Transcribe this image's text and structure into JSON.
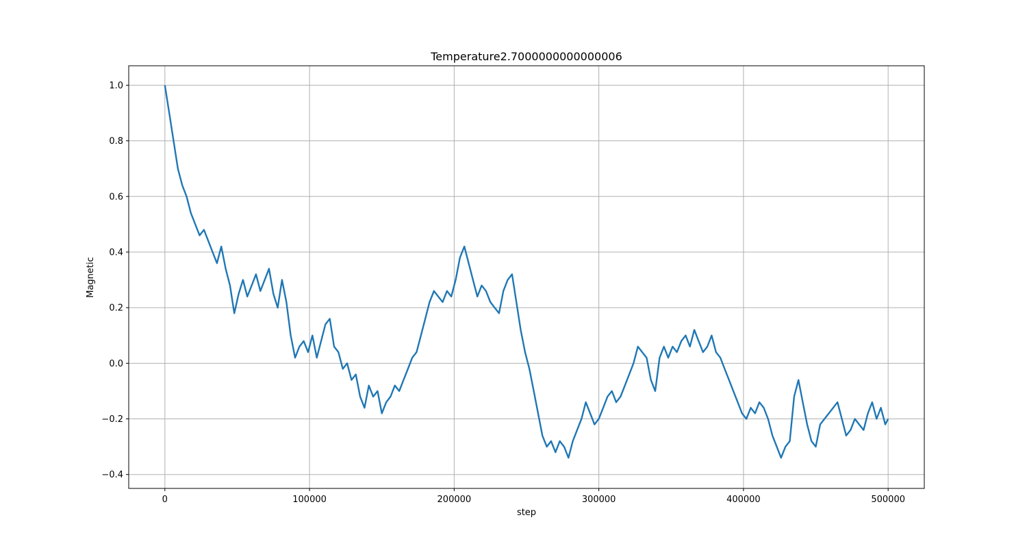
{
  "chart_data": {
    "type": "line",
    "title": "Temperature2.7000000000000006",
    "xlabel": "step",
    "ylabel": "Magnetic",
    "xlim": [
      -25000,
      525000
    ],
    "ylim": [
      -0.45,
      1.07
    ],
    "xticks": [
      0,
      100000,
      200000,
      300000,
      400000,
      500000
    ],
    "xtick_labels": [
      "0",
      "100000",
      "200000",
      "300000",
      "400000",
      "500000"
    ],
    "yticks": [
      -0.4,
      -0.2,
      0.0,
      0.2,
      0.4,
      0.6,
      0.8,
      1.0
    ],
    "ytick_labels": [
      "−0.4",
      "−0.2",
      "0.0",
      "0.2",
      "0.4",
      "0.6",
      "0.8",
      "1.0"
    ],
    "grid": true,
    "series": [
      {
        "color": "#1f77b4",
        "x": [
          0,
          3000,
          6000,
          9000,
          12000,
          15000,
          18000,
          21000,
          24000,
          27000,
          30000,
          33000,
          36000,
          39000,
          42000,
          45000,
          48000,
          51000,
          54000,
          57000,
          60000,
          63000,
          66000,
          69000,
          72000,
          75000,
          78000,
          81000,
          84000,
          87000,
          90000,
          93000,
          96000,
          99000,
          102000,
          105000,
          108000,
          111000,
          114000,
          117000,
          120000,
          123000,
          126000,
          129000,
          132000,
          135000,
          138000,
          141000,
          144000,
          147000,
          150000,
          153000,
          156000,
          159000,
          162000,
          165000,
          168000,
          171000,
          174000,
          177000,
          180000,
          183000,
          186000,
          189000,
          192000,
          195000,
          198000,
          201000,
          204000,
          207000,
          210000,
          213000,
          216000,
          219000,
          222000,
          225000,
          228000,
          231000,
          234000,
          237000,
          240000,
          243000,
          246000,
          249000,
          252000,
          255000,
          258000,
          261000,
          264000,
          267000,
          270000,
          273000,
          276000,
          279000,
          282000,
          285000,
          288000,
          291000,
          294000,
          297000,
          300000,
          303000,
          306000,
          309000,
          312000,
          315000,
          318000,
          321000,
          324000,
          327000,
          330000,
          333000,
          336000,
          339000,
          342000,
          345000,
          348000,
          351000,
          354000,
          357000,
          360000,
          363000,
          366000,
          369000,
          372000,
          375000,
          378000,
          381000,
          384000,
          387000,
          390000,
          393000,
          396000,
          399000,
          402000,
          405000,
          408000,
          411000,
          414000,
          417000,
          420000,
          423000,
          426000,
          429000,
          432000,
          435000,
          438000,
          441000,
          444000,
          447000,
          450000,
          453000,
          456000,
          459000,
          462000,
          465000,
          468000,
          471000,
          474000,
          477000,
          480000,
          483000,
          486000,
          489000,
          492000,
          495000,
          498000,
          500000
        ],
        "y": [
          1.0,
          0.9,
          0.8,
          0.7,
          0.64,
          0.6,
          0.54,
          0.5,
          0.46,
          0.48,
          0.44,
          0.4,
          0.36,
          0.42,
          0.34,
          0.28,
          0.18,
          0.25,
          0.3,
          0.24,
          0.28,
          0.32,
          0.26,
          0.3,
          0.34,
          0.25,
          0.2,
          0.3,
          0.22,
          0.1,
          0.02,
          0.06,
          0.08,
          0.04,
          0.1,
          0.02,
          0.08,
          0.14,
          0.16,
          0.06,
          0.04,
          -0.02,
          0.0,
          -0.06,
          -0.04,
          -0.12,
          -0.16,
          -0.08,
          -0.12,
          -0.1,
          -0.18,
          -0.14,
          -0.12,
          -0.08,
          -0.1,
          -0.06,
          -0.02,
          0.02,
          0.04,
          0.1,
          0.16,
          0.22,
          0.26,
          0.24,
          0.22,
          0.26,
          0.24,
          0.3,
          0.38,
          0.42,
          0.36,
          0.3,
          0.24,
          0.28,
          0.26,
          0.22,
          0.2,
          0.18,
          0.26,
          0.3,
          0.32,
          0.22,
          0.12,
          0.04,
          -0.02,
          -0.1,
          -0.18,
          -0.26,
          -0.3,
          -0.28,
          -0.32,
          -0.28,
          -0.3,
          -0.34,
          -0.28,
          -0.24,
          -0.2,
          -0.14,
          -0.18,
          -0.22,
          -0.2,
          -0.16,
          -0.12,
          -0.1,
          -0.14,
          -0.12,
          -0.08,
          -0.04,
          0.0,
          0.06,
          0.04,
          0.02,
          -0.06,
          -0.1,
          0.02,
          0.06,
          0.02,
          0.06,
          0.04,
          0.08,
          0.1,
          0.06,
          0.12,
          0.08,
          0.04,
          0.06,
          0.1,
          0.04,
          0.02,
          -0.02,
          -0.06,
          -0.1,
          -0.14,
          -0.18,
          -0.2,
          -0.16,
          -0.18,
          -0.14,
          -0.16,
          -0.2,
          -0.26,
          -0.3,
          -0.34,
          -0.3,
          -0.28,
          -0.12,
          -0.06,
          -0.14,
          -0.22,
          -0.28,
          -0.3,
          -0.22,
          -0.2,
          -0.18,
          -0.16,
          -0.14,
          -0.2,
          -0.26,
          -0.24,
          -0.2,
          -0.22,
          -0.24,
          -0.18,
          -0.14,
          -0.2,
          -0.16,
          -0.22,
          -0.2
        ]
      }
    ]
  }
}
